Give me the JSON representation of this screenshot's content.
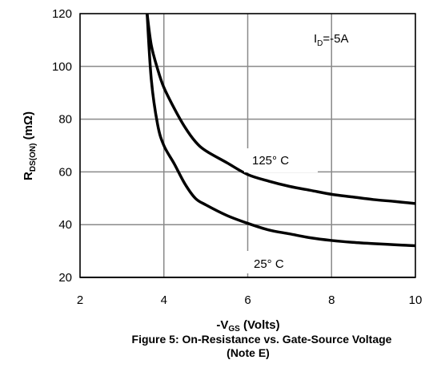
{
  "chart_data": {
    "type": "line",
    "xlabel_main": "-V",
    "xlabel_sub": "GS",
    "xlabel_tail": " (Volts)",
    "ylabel_main": "R",
    "ylabel_sub": "DS(ON)",
    "ylabel_tail": " (mΩ)",
    "xlim": [
      2,
      10
    ],
    "ylim": [
      20,
      120
    ],
    "xticks": [
      "2",
      "4",
      "6",
      "8",
      "10"
    ],
    "yticks": [
      "20",
      "40",
      "60",
      "80",
      "100",
      "120"
    ],
    "grid": true,
    "series": [
      {
        "name": "125° C",
        "x": [
          3.6,
          3.7,
          3.85,
          4.0,
          4.25,
          4.5,
          4.75,
          5.0,
          5.5,
          6.0,
          6.5,
          7.0,
          7.5,
          8.0,
          8.5,
          9.0,
          9.5,
          10.0
        ],
        "y": [
          120,
          108,
          99,
          92,
          84,
          77,
          71.5,
          68,
          63.5,
          59,
          56.5,
          54.5,
          53,
          51.5,
          50.5,
          49.5,
          48.8,
          48
        ]
      },
      {
        "name": "25° C",
        "x": [
          3.6,
          3.7,
          3.85,
          4.0,
          4.25,
          4.5,
          4.75,
          5.0,
          5.5,
          6.0,
          6.5,
          7.0,
          7.5,
          8.0,
          8.5,
          9.0,
          9.5,
          10.0
        ],
        "y": [
          120,
          95,
          78,
          70,
          63,
          55.5,
          50,
          47.5,
          43.5,
          40.5,
          38,
          36.5,
          35,
          34,
          33.3,
          32.8,
          32.4,
          32
        ]
      }
    ],
    "annotations": {
      "id_main": "I",
      "id_sub": "D",
      "id_tail": "=-5A"
    },
    "caption_line1": "Figure 5: On-Resistance vs. Gate-Source Voltage",
    "caption_line2": "(Note E)"
  }
}
